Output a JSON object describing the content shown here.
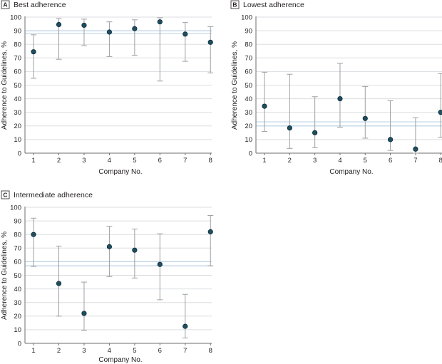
{
  "chart_data": [
    {
      "type": "scatter",
      "panel_letter": "A",
      "title": "Best adherence",
      "xlabel": "Company No.",
      "ylabel": "Adherence to Guidelines, %",
      "ylim": [
        0,
        100
      ],
      "yticks": [
        0,
        10,
        20,
        30,
        40,
        50,
        60,
        70,
        80,
        90,
        100
      ],
      "x": [
        1,
        2,
        3,
        4,
        5,
        6,
        7,
        8
      ],
      "values": [
        74.5,
        94.5,
        94,
        89,
        91.5,
        96.5,
        87.5,
        81.5
      ],
      "lower": [
        55,
        69,
        79,
        71,
        72,
        53,
        67.5,
        59
      ],
      "upper": [
        87,
        99,
        98.5,
        96.5,
        98,
        99.5,
        96,
        93
      ],
      "reference_band": [
        88,
        90
      ],
      "grid": "horizontal"
    },
    {
      "type": "scatter",
      "panel_letter": "B",
      "title": "Lowest adherence",
      "xlabel": "Company No.",
      "ylabel": "Adherence to Guidelines, %",
      "ylim": [
        0,
        100
      ],
      "yticks": [
        0,
        10,
        20,
        30,
        40,
        50,
        60,
        70,
        80,
        90,
        100
      ],
      "x": [
        1,
        2,
        3,
        4,
        5,
        6,
        7,
        8
      ],
      "values": [
        34.5,
        18.5,
        15,
        40,
        25.5,
        10,
        3,
        30
      ],
      "lower": [
        16,
        3.5,
        4,
        19,
        11,
        2,
        0,
        11.5
      ],
      "upper": [
        59.5,
        58,
        41.5,
        66,
        49,
        38.5,
        26,
        58.5
      ],
      "reference_band": [
        20,
        23
      ],
      "grid": "horizontal"
    },
    {
      "type": "scatter",
      "panel_letter": "C",
      "title": "Intermediate adherence",
      "xlabel": "Company No.",
      "ylabel": "Adherence to Guidelines, %",
      "ylim": [
        0,
        100
      ],
      "yticks": [
        0,
        10,
        20,
        30,
        40,
        50,
        60,
        70,
        80,
        90,
        100
      ],
      "x": [
        1,
        2,
        3,
        4,
        5,
        6,
        7,
        8
      ],
      "values": [
        80,
        44,
        22,
        71,
        68.5,
        58,
        12.5,
        82
      ],
      "lower": [
        56.5,
        20,
        9.5,
        49,
        48,
        32,
        4,
        57
      ],
      "upper": [
        92,
        71.5,
        45,
        86,
        84,
        80.5,
        36,
        94
      ],
      "reference_band": [
        57,
        60
      ],
      "grid": "horizontal"
    }
  ]
}
